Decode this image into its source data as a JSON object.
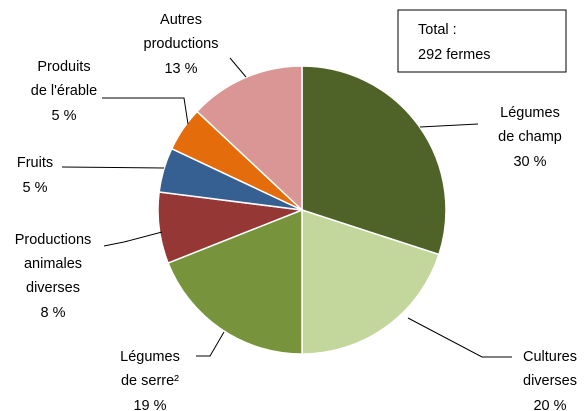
{
  "chart_data": {
    "type": "pie",
    "categories": [
      "Légumes de champ",
      "Cultures diverses",
      "Légumes de serre²",
      "Productions animales diverses",
      "Fruits",
      "Produits de l'érable",
      "Autres productions"
    ],
    "values": [
      30,
      20,
      19,
      8,
      5,
      5,
      13
    ],
    "value_labels": [
      "30 %",
      "20 %",
      "19 %",
      "8 %",
      "5 %",
      "5 %",
      "13 %"
    ],
    "colors": [
      "#4f6228",
      "#c3d69b",
      "#77933c",
      "#953735",
      "#376092",
      "#e46c0a",
      "#d99694"
    ],
    "annotation": [
      "Total :",
      "292 fermes"
    ]
  }
}
